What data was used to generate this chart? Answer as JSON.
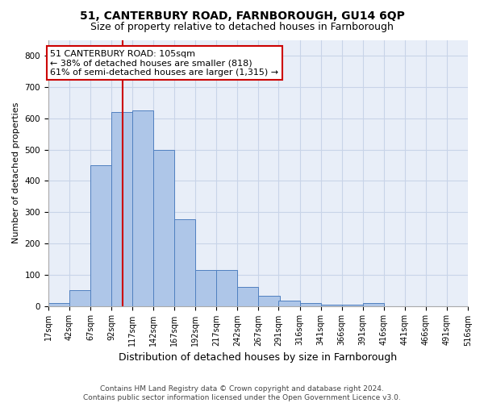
{
  "title": "51, CANTERBURY ROAD, FARNBOROUGH, GU14 6QP",
  "subtitle": "Size of property relative to detached houses in Farnborough",
  "xlabel": "Distribution of detached houses by size in Farnborough",
  "ylabel": "Number of detached properties",
  "bar_values": [
    10,
    50,
    450,
    620,
    625,
    500,
    278,
    115,
    115,
    62,
    33,
    18,
    10,
    5,
    5,
    8,
    0,
    0,
    0,
    0
  ],
  "bin_left_edges": [
    17,
    42,
    67,
    92,
    117,
    142,
    167,
    192,
    217,
    242,
    267,
    291,
    316,
    341,
    366,
    391,
    416,
    441,
    466,
    491
  ],
  "bin_width": 25,
  "tick_labels": [
    "17sqm",
    "42sqm",
    "67sqm",
    "92sqm",
    "117sqm",
    "142sqm",
    "167sqm",
    "192sqm",
    "217sqm",
    "242sqm",
    "267sqm",
    "291sqm",
    "316sqm",
    "341sqm",
    "366sqm",
    "391sqm",
    "416sqm",
    "441sqm",
    "466sqm",
    "491sqm",
    "516sqm"
  ],
  "bar_color": "#aec6e8",
  "bar_edge_color": "#5080c0",
  "vline_value": 105,
  "vline_color": "#cc0000",
  "annotation_text": "51 CANTERBURY ROAD: 105sqm\n← 38% of detached houses are smaller (818)\n61% of semi-detached houses are larger (1,315) →",
  "annotation_box_facecolor": "#ffffff",
  "annotation_box_edgecolor": "#cc0000",
  "xlim_left": 17,
  "xlim_right": 516,
  "ylim": [
    0,
    850
  ],
  "yticks": [
    0,
    100,
    200,
    300,
    400,
    500,
    600,
    700,
    800
  ],
  "grid_color": "#c8d4e8",
  "bg_color": "#e8eef8",
  "footer_line1": "Contains HM Land Registry data © Crown copyright and database right 2024.",
  "footer_line2": "Contains public sector information licensed under the Open Government Licence v3.0.",
  "title_fontsize": 10,
  "subtitle_fontsize": 9,
  "ylabel_fontsize": 8,
  "xlabel_fontsize": 9,
  "tick_fontsize": 7,
  "annotation_fontsize": 8,
  "footer_fontsize": 6.5
}
